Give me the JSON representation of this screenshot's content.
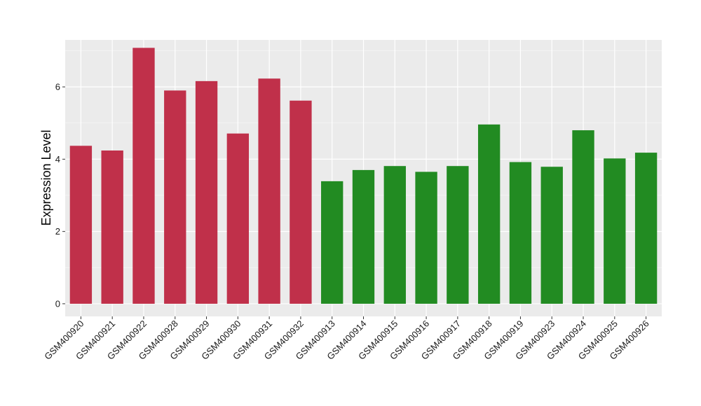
{
  "chart_data": {
    "type": "bar",
    "title": "",
    "xlabel": "",
    "ylabel": "Expression Level",
    "ylim": [
      -0.35,
      7.3
    ],
    "yticks": [
      0,
      2,
      4,
      6
    ],
    "grid": true,
    "legend": "none",
    "colors": {
      "panel": "#ebebeb",
      "grid_major": "#ffffff",
      "group_a": "#c0304a",
      "group_b": "#228b22"
    },
    "categories": [
      "GSM400920",
      "GSM400921",
      "GSM400922",
      "GSM400928",
      "GSM400929",
      "GSM400930",
      "GSM400931",
      "GSM400932",
      "GSM400913",
      "GSM400914",
      "GSM400915",
      "GSM400916",
      "GSM400917",
      "GSM400918",
      "GSM400919",
      "GSM400923",
      "GSM400924",
      "GSM400925",
      "GSM400926"
    ],
    "values": [
      4.37,
      4.24,
      7.08,
      5.9,
      6.16,
      4.71,
      6.23,
      5.62,
      3.39,
      3.7,
      3.81,
      3.65,
      3.81,
      4.96,
      3.92,
      3.79,
      4.8,
      4.02,
      4.18
    ],
    "groups": [
      "group_a",
      "group_a",
      "group_a",
      "group_a",
      "group_a",
      "group_a",
      "group_a",
      "group_a",
      "group_b",
      "group_b",
      "group_b",
      "group_b",
      "group_b",
      "group_b",
      "group_b",
      "group_b",
      "group_b",
      "group_b",
      "group_b"
    ]
  }
}
